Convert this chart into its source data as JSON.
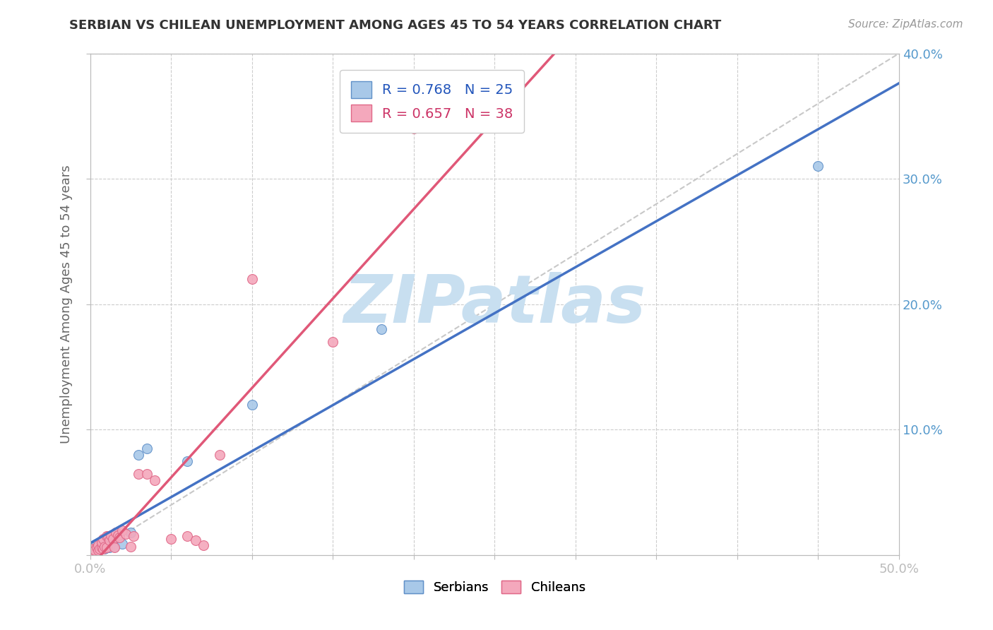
{
  "title": "SERBIAN VS CHILEAN UNEMPLOYMENT AMONG AGES 45 TO 54 YEARS CORRELATION CHART",
  "source_text": "Source: ZipAtlas.com",
  "ylabel": "Unemployment Among Ages 45 to 54 years",
  "xlim": [
    0.0,
    0.5
  ],
  "ylim": [
    0.0,
    0.4
  ],
  "xticks": [
    0.0,
    0.05,
    0.1,
    0.15,
    0.2,
    0.25,
    0.3,
    0.35,
    0.4,
    0.45,
    0.5
  ],
  "yticks": [
    0.0,
    0.1,
    0.2,
    0.3,
    0.4
  ],
  "serbian_color": "#A8C8E8",
  "chilean_color": "#F4A8BC",
  "serbian_edge": "#6090C8",
  "chilean_edge": "#E06888",
  "trend_serbian_color": "#4472C4",
  "trend_chilean_color": "#E05878",
  "watermark": "ZIPatlas",
  "watermark_color": "#C8DFF0",
  "legend_R_serbian": "R = 0.768",
  "legend_N_serbian": "N = 25",
  "legend_R_chilean": "R = 0.657",
  "legend_N_chilean": "N = 38",
  "serbian_x": [
    0.0,
    0.001,
    0.002,
    0.003,
    0.004,
    0.005,
    0.006,
    0.007,
    0.008,
    0.009,
    0.01,
    0.011,
    0.012,
    0.013,
    0.015,
    0.016,
    0.018,
    0.02,
    0.025,
    0.03,
    0.035,
    0.06,
    0.1,
    0.18,
    0.45
  ],
  "serbian_y": [
    0.005,
    0.004,
    0.006,
    0.004,
    0.005,
    0.006,
    0.005,
    0.008,
    0.006,
    0.005,
    0.007,
    0.008,
    0.006,
    0.01,
    0.007,
    0.018,
    0.016,
    0.009,
    0.018,
    0.08,
    0.085,
    0.075,
    0.12,
    0.18,
    0.31
  ],
  "chilean_x": [
    0.0,
    0.001,
    0.002,
    0.003,
    0.004,
    0.005,
    0.005,
    0.006,
    0.007,
    0.007,
    0.008,
    0.008,
    0.009,
    0.01,
    0.01,
    0.011,
    0.012,
    0.013,
    0.014,
    0.015,
    0.016,
    0.017,
    0.018,
    0.02,
    0.022,
    0.025,
    0.027,
    0.03,
    0.035,
    0.04,
    0.05,
    0.06,
    0.065,
    0.07,
    0.08,
    0.1,
    0.15,
    0.2
  ],
  "chilean_y": [
    0.003,
    0.004,
    0.005,
    0.004,
    0.006,
    0.004,
    0.008,
    0.005,
    0.006,
    0.01,
    0.005,
    0.013,
    0.007,
    0.006,
    0.015,
    0.015,
    0.012,
    0.016,
    0.013,
    0.006,
    0.018,
    0.016,
    0.014,
    0.02,
    0.017,
    0.007,
    0.015,
    0.065,
    0.065,
    0.06,
    0.013,
    0.015,
    0.012,
    0.008,
    0.08,
    0.22,
    0.17,
    0.34
  ],
  "marker_size": 100,
  "background_color": "#FFFFFF",
  "grid_color": "#CCCCCC",
  "axis_color": "#BBBBBB",
  "tick_color": "#5599CC",
  "title_color": "#333333",
  "source_color": "#999999",
  "ylabel_color": "#666666"
}
